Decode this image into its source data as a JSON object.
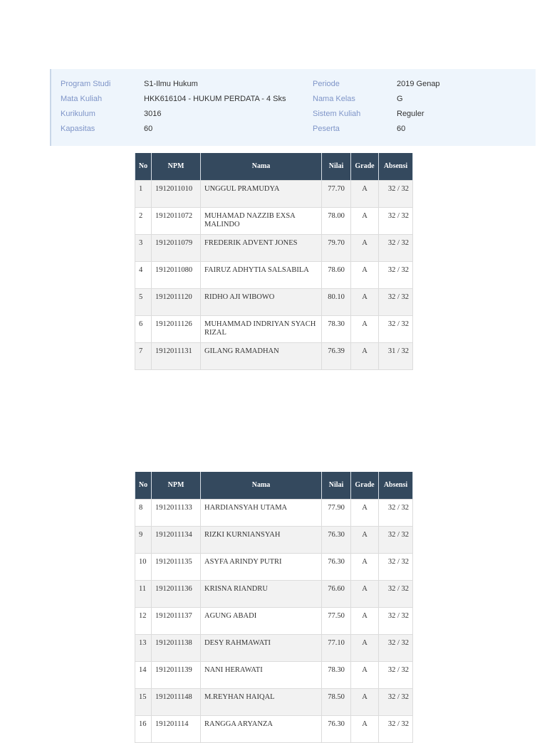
{
  "info": {
    "left": [
      {
        "label": "Program Studi",
        "value": "S1-Ilmu Hukum"
      },
      {
        "label": "Mata Kuliah",
        "value": "HKK616104 - HUKUM PERDATA - 4 Sks"
      },
      {
        "label": "Kurikulum",
        "value": "3016"
      },
      {
        "label": "Kapasitas",
        "value": "60"
      }
    ],
    "right": [
      {
        "label": "Periode",
        "value": "2019 Genap"
      },
      {
        "label": "Nama Kelas",
        "value": "G"
      },
      {
        "label": "Sistem Kuliah",
        "value": "Reguler"
      },
      {
        "label": "Peserta",
        "value": "60"
      }
    ]
  },
  "table_headers": {
    "no": "No",
    "npm": "NPM",
    "nama": "Nama",
    "nilai": "Nilai",
    "grade": "Grade",
    "absensi": "Absensi"
  },
  "colors": {
    "header_bg": "#34495e",
    "panel_bg": "#eef5fc",
    "label": "#7f95c8",
    "row_alt": "#f2f2f2"
  },
  "table1": [
    {
      "no": "1",
      "npm": "1912011010",
      "nama": "UNGGUL PRAMUDYA",
      "nilai": "77.70",
      "grade": "A",
      "absensi": "32 / 32"
    },
    {
      "no": "2",
      "npm": "1912011072",
      "nama": "MUHAMAD NAZZIB EXSA MALINDO",
      "nilai": "78.00",
      "grade": "A",
      "absensi": "32 / 32"
    },
    {
      "no": "3",
      "npm": "1912011079",
      "nama": "FREDERIK ADVENT JONES",
      "nilai": "79.70",
      "grade": "A",
      "absensi": "32 / 32"
    },
    {
      "no": "4",
      "npm": "1912011080",
      "nama": "FAIRUZ ADHYTIA SALSABILA",
      "nilai": "78.60",
      "grade": "A",
      "absensi": "32 / 32"
    },
    {
      "no": "5",
      "npm": "1912011120",
      "nama": "RIDHO AJI WIBOWO",
      "nilai": "80.10",
      "grade": "A",
      "absensi": "32 / 32"
    },
    {
      "no": "6",
      "npm": "1912011126",
      "nama": "MUHAMMAD INDRIYAN SYACH RIZAL",
      "nilai": "78.30",
      "grade": "A",
      "absensi": "32 / 32"
    },
    {
      "no": "7",
      "npm": "1912011131",
      "nama": "GILANG RAMADHAN",
      "nilai": "76.39",
      "grade": "A",
      "absensi": "31 / 32"
    }
  ],
  "table2": [
    {
      "no": "8",
      "npm": "1912011133",
      "nama": "HARDIANSYAH UTAMA",
      "nilai": "77.90",
      "grade": "A",
      "absensi": "32 / 32"
    },
    {
      "no": "9",
      "npm": "1912011134",
      "nama": "RIZKI KURNIANSYAH",
      "nilai": "76.30",
      "grade": "A",
      "absensi": "32 / 32"
    },
    {
      "no": "10",
      "npm": "1912011135",
      "nama": "ASYFA ARINDY PUTRI",
      "nilai": "76.30",
      "grade": "A",
      "absensi": "32 / 32"
    },
    {
      "no": "11",
      "npm": "1912011136",
      "nama": "KRISNA RIANDRU",
      "nilai": "76.60",
      "grade": "A",
      "absensi": "32 / 32"
    },
    {
      "no": "12",
      "npm": "1912011137",
      "nama": "AGUNG ABADI",
      "nilai": "77.50",
      "grade": "A",
      "absensi": "32 / 32"
    },
    {
      "no": "13",
      "npm": "1912011138",
      "nama": "DESY RAHMAWATI",
      "nilai": "77.10",
      "grade": "A",
      "absensi": "32 / 32"
    },
    {
      "no": "14",
      "npm": "1912011139",
      "nama": "NANI HERAWATI",
      "nilai": "78.30",
      "grade": "A",
      "absensi": "32 / 32"
    },
    {
      "no": "15",
      "npm": "1912011148",
      "nama": "M.REYHAN HAIQAL",
      "nilai": "78.50",
      "grade": "A",
      "absensi": "32 / 32"
    },
    {
      "no": "16",
      "npm": "191201114",
      "nama": "RANGGA ARYANZA",
      "nilai": "76.30",
      "grade": "A",
      "absensi": "32 / 32"
    }
  ]
}
